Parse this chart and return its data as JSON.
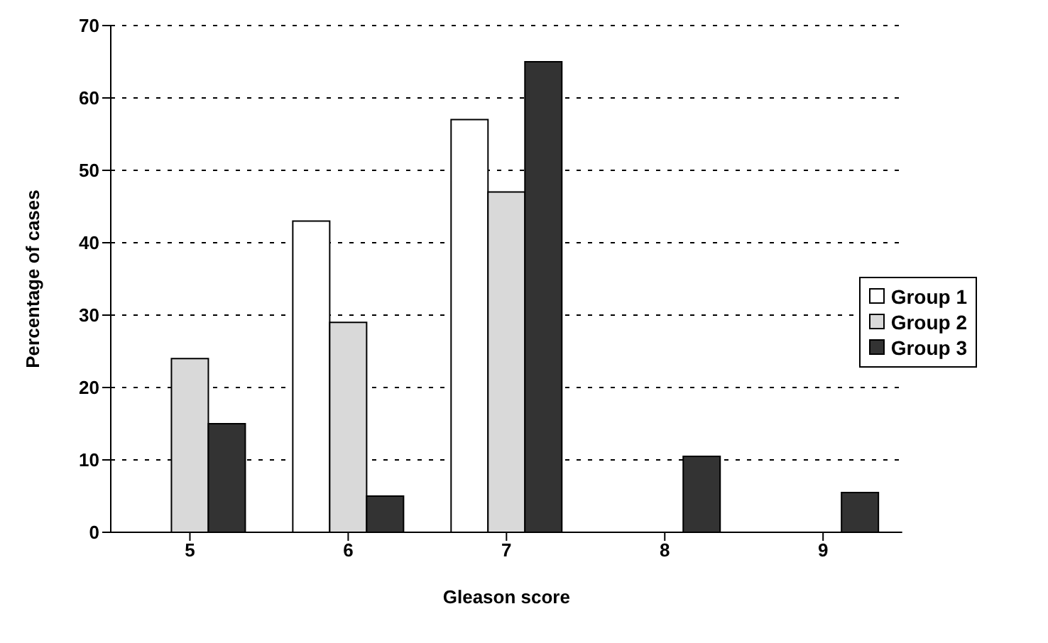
{
  "chart_data": {
    "type": "bar",
    "xlabel": "Gleason score",
    "ylabel": "Percentage of cases",
    "categories": [
      "5",
      "6",
      "7",
      "8",
      "9"
    ],
    "series": [
      {
        "name": "Group 1",
        "color": "#ffffff",
        "values": [
          0,
          43,
          57,
          0,
          0
        ]
      },
      {
        "name": "Group 2",
        "color": "#d9d9d9",
        "values": [
          24,
          29,
          47,
          0,
          0
        ]
      },
      {
        "name": "Group 3",
        "color": "#333333",
        "values": [
          15,
          5,
          65,
          10.5,
          5.5
        ]
      }
    ],
    "ylim": [
      0,
      70
    ],
    "yticks": [
      0,
      10,
      20,
      30,
      40,
      50,
      60,
      70
    ],
    "grid": "y",
    "legend": "right"
  }
}
